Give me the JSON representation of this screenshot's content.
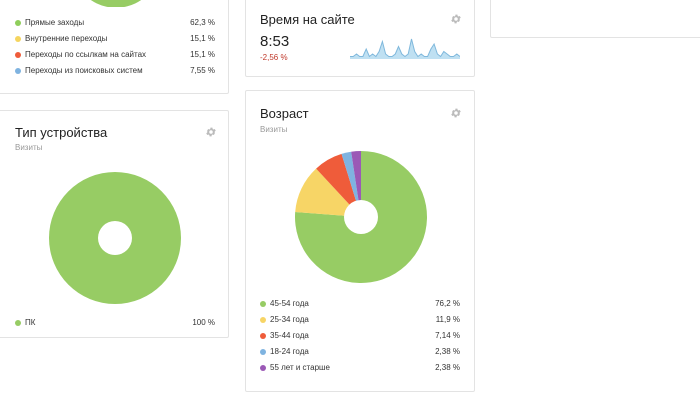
{
  "traffic_sources": {
    "items": [
      {
        "label": "Прямые заходы",
        "value": "62,3 %",
        "color": "#8fce5b"
      },
      {
        "label": "Внутренние переходы",
        "value": "15,1 %",
        "color": "#f5d55f"
      },
      {
        "label": "Переходы по ссылкам на сайтах",
        "value": "15,1 %",
        "color": "#ef5c3a"
      },
      {
        "label": "Переходы из поисковых систем",
        "value": "7,55 %",
        "color": "#7fb3e0"
      }
    ],
    "pie_color": "#97cc64"
  },
  "time_on_site": {
    "title": "Время на сайте",
    "value": "8:53",
    "delta": "-2,56 %",
    "sparkline": [
      1,
      1,
      2,
      1,
      1,
      4,
      1,
      2,
      1,
      3,
      7,
      2,
      1,
      1,
      2,
      5,
      2,
      1,
      2,
      8,
      3,
      1,
      2,
      1,
      1,
      4,
      6,
      2,
      1,
      3,
      2,
      1,
      1,
      2,
      1
    ]
  },
  "device_type": {
    "title": "Тип устройства",
    "subtitle": "Визиты",
    "items": [
      {
        "label": "ПК",
        "value": "100 %",
        "color": "#97cc64"
      }
    ]
  },
  "age": {
    "title": "Возраст",
    "subtitle": "Визиты",
    "items": [
      {
        "label": "45-54 года",
        "value": "76,2 %",
        "color": "#97cc64"
      },
      {
        "label": "25-34 года",
        "value": "11,9 %",
        "color": "#f7d566"
      },
      {
        "label": "35-44 года",
        "value": "7,14 %",
        "color": "#ef5c3a"
      },
      {
        "label": "18-24 года",
        "value": "2,38 %",
        "color": "#7fb3e0"
      },
      {
        "label": "55 лет и старше",
        "value": "2,38 %",
        "color": "#9b59b6"
      }
    ]
  },
  "chart_data": [
    {
      "type": "pie",
      "categories": [
        "Прямые заходы",
        "Внутренние переходы",
        "Переходы по ссылкам на сайтах",
        "Переходы из поисковых систем"
      ],
      "values": [
        62.3,
        15.1,
        15.1,
        7.55
      ]
    },
    {
      "type": "line",
      "title": "Время на сайте",
      "values": [
        1,
        1,
        2,
        1,
        1,
        4,
        1,
        2,
        1,
        3,
        7,
        2,
        1,
        1,
        2,
        5,
        2,
        1,
        2,
        8,
        3,
        1,
        2,
        1,
        1,
        4,
        6,
        2,
        1,
        3,
        2,
        1,
        1,
        2,
        1
      ]
    },
    {
      "type": "pie",
      "title": "Тип устройства",
      "subtitle": "Визиты",
      "categories": [
        "ПК"
      ],
      "values": [
        100
      ]
    },
    {
      "type": "pie",
      "title": "Возраст",
      "subtitle": "Визиты",
      "categories": [
        "45-54 года",
        "25-34 года",
        "35-44 года",
        "18-24 года",
        "55 лет и старше"
      ],
      "values": [
        76.2,
        11.9,
        7.14,
        2.38,
        2.38
      ]
    }
  ]
}
